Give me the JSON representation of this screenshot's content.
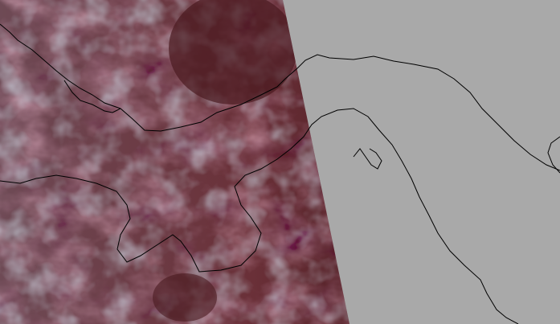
{
  "map": {
    "background_color": "#a9a9a9",
    "swath_colors": {
      "dark": "#4a1a1f",
      "mid": "#7a4048",
      "pink": "#d09a9a",
      "gray_blue": "#8a95a5"
    },
    "coastline_color": "#000000",
    "layers": [
      "satellite-swath",
      "coastlines"
    ]
  }
}
